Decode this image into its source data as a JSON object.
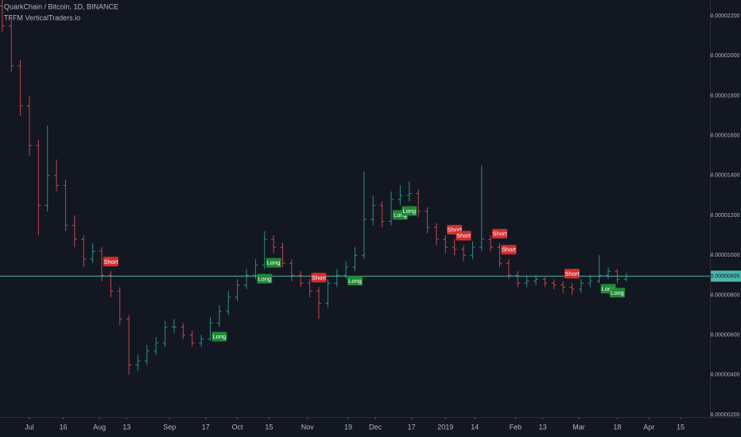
{
  "chart_data": {
    "type": "ohlc",
    "title": "QuarkChain / Bitcoin, 1D, BINANCE",
    "subtitle": "TFFM VerticalTraders.io",
    "x": [
      -12,
      -8,
      -4,
      0,
      4,
      8,
      12,
      16,
      20,
      24,
      28,
      32,
      36,
      40,
      44,
      48,
      52,
      56,
      60,
      64,
      68,
      72,
      76,
      80,
      84,
      88,
      92,
      96,
      100,
      104,
      108,
      112,
      116,
      120,
      124,
      128,
      132,
      136,
      140,
      144,
      148,
      152,
      156,
      160,
      164,
      168,
      172,
      176,
      180,
      184,
      188,
      192,
      196,
      200,
      204,
      208,
      212,
      216,
      220,
      224,
      228,
      232,
      236,
      240,
      244,
      248,
      252,
      256,
      260,
      264
    ],
    "open": [
      2.25e-05,
      2.15e-05,
      1.95e-05,
      1.75e-05,
      1.55e-05,
      1.25e-05,
      1.4e-05,
      1.35e-05,
      1.15e-05,
      1.08e-05,
      9.8e-06,
      1.02e-05,
      9e-06,
      8.2e-06,
      6.8e-06,
      4.5e-06,
      4.7e-06,
      5.2e-06,
      5.6e-06,
      6.4e-06,
      6.4e-06,
      6e-06,
      5.6e-06,
      5.8e-06,
      6.6e-06,
      7.2e-06,
      7.9e-06,
      8.5e-06,
      9e-06,
      9.5e-06,
      1.08e-05,
      1.04e-05,
      9.6e-06,
      9e-06,
      8.6e-06,
      8.2e-06,
      7.6e-06,
      8.6e-06,
      9e-06,
      9.4e-06,
      1e-05,
      1.18e-05,
      1.25e-05,
      1.17e-05,
      1.28e-05,
      1.3e-05,
      1.31e-05,
      1.22e-05,
      1.14e-05,
      1.08e-05,
      1.04e-05,
      1.03e-05,
      1e-05,
      1.04e-05,
      1.08e-05,
      1.04e-05,
      9.6e-06,
      9e-06,
      8.6e-06,
      8.7e-06,
      8.8e-06,
      8.6e-06,
      8.5e-06,
      8.4e-06,
      8.3e-06,
      8.6e-06,
      8.7e-06,
      9e-06,
      9.2e-06,
      8.8e-06
    ],
    "high": [
      2.28e-05,
      2.2e-05,
      1.98e-05,
      1.8e-05,
      1.58e-05,
      1.65e-05,
      1.48e-05,
      1.38e-05,
      1.2e-05,
      1.1e-05,
      1.06e-05,
      1.04e-05,
      9.2e-06,
      8.4e-06,
      7e-06,
      5e-06,
      5.5e-06,
      5.9e-06,
      6.7e-06,
      6.8e-06,
      6.6e-06,
      6.2e-06,
      6e-06,
      6.9e-06,
      7.5e-06,
      8.2e-06,
      8.8e-06,
      9.3e-06,
      9.8e-06,
      1.12e-05,
      1.1e-05,
      1.06e-05,
      9.8e-06,
      9.2e-06,
      8.8e-06,
      8.4e-06,
      8.8e-06,
      9.3e-06,
      9.7e-06,
      1.04e-05,
      1.42e-05,
      1.3e-05,
      1.27e-05,
      1.32e-05,
      1.35e-05,
      1.37e-05,
      1.33e-05,
      1.24e-05,
      1.16e-05,
      1.1e-05,
      1.08e-05,
      1.05e-05,
      1.07e-05,
      1.45e-05,
      1.1e-05,
      1.06e-05,
      9.8e-06,
      9.2e-06,
      9e-06,
      9e-06,
      8.9e-06,
      8.8e-06,
      8.7e-06,
      8.6e-06,
      8.8e-06,
      9e-06,
      1e-05,
      9.4e-06,
      9.3e-06,
      9.1e-06
    ],
    "low": [
      2.12e-05,
      1.92e-05,
      1.7e-05,
      1.5e-05,
      1.1e-05,
      1.22e-05,
      1.32e-05,
      1.12e-05,
      1.04e-05,
      9.4e-06,
      9.6e-06,
      8.7e-06,
      7.9e-06,
      6.5e-06,
      4e-06,
      4.2e-06,
      4.5e-06,
      5e-06,
      5.4e-06,
      6.1e-06,
      5.8e-06,
      5.4e-06,
      5.4e-06,
      5.7e-06,
      6.4e-06,
      7e-06,
      7.7e-06,
      8.3e-06,
      8.8e-06,
      9.3e-06,
      1.01e-05,
      9.4e-06,
      8.7e-06,
      8.4e-06,
      7.9e-06,
      6.8e-06,
      7.4e-06,
      8.4e-06,
      8.8e-06,
      9.2e-06,
      9.8e-06,
      1.15e-05,
      1.14e-05,
      1.15e-05,
      1.25e-05,
      1.27e-05,
      1.19e-05,
      1.11e-05,
      1.05e-05,
      1.01e-05,
      1e-05,
      9.7e-06,
      9.8e-06,
      1.02e-05,
      1.02e-05,
      9.4e-06,
      8.8e-06,
      8.4e-06,
      8.4e-06,
      8.5e-06,
      8.4e-06,
      8.3e-06,
      8.1e-06,
      8e-06,
      8.1e-06,
      8.4e-06,
      8.6e-06,
      8.8e-06,
      8.6e-06,
      8.7e-06
    ],
    "close": [
      2.15e-05,
      1.95e-05,
      1.75e-05,
      1.55e-05,
      1.25e-05,
      1.4e-05,
      1.35e-05,
      1.15e-05,
      1.08e-05,
      9.8e-06,
      1.02e-05,
      9e-06,
      8.2e-06,
      6.8e-06,
      4.5e-06,
      4.7e-06,
      5.2e-06,
      5.6e-06,
      6.4e-06,
      6.4e-06,
      6e-06,
      5.6e-06,
      5.8e-06,
      6.6e-06,
      7.2e-06,
      7.9e-06,
      8.5e-06,
      9e-06,
      9.5e-06,
      1.08e-05,
      1.04e-05,
      9.6e-06,
      9e-06,
      8.6e-06,
      8.2e-06,
      7.6e-06,
      8.6e-06,
      9e-06,
      9.4e-06,
      1e-05,
      1.18e-05,
      1.25e-05,
      1.17e-05,
      1.28e-05,
      1.3e-05,
      1.31e-05,
      1.22e-05,
      1.14e-05,
      1.08e-05,
      1.04e-05,
      1.03e-05,
      1e-05,
      1.04e-05,
      1.08e-05,
      1.04e-05,
      9.6e-06,
      9e-06,
      8.6e-06,
      8.7e-06,
      8.8e-06,
      8.6e-06,
      8.5e-06,
      8.4e-06,
      8.3e-06,
      8.6e-06,
      8.7e-06,
      9e-06,
      9.2e-06,
      8.8e-06,
      8.95e-06
    ],
    "up_color": "#2a8f86",
    "down_color": "#c2464c",
    "xlim": [
      -13,
      301
    ],
    "xticks": [
      {
        "value": 0,
        "label": "Jul"
      },
      {
        "value": 15,
        "label": "16"
      },
      {
        "value": 31,
        "label": "Aug"
      },
      {
        "value": 43,
        "label": "13"
      },
      {
        "value": 62,
        "label": "Sep"
      },
      {
        "value": 78,
        "label": "17"
      },
      {
        "value": 92,
        "label": "Oct"
      },
      {
        "value": 106,
        "label": "15"
      },
      {
        "value": 123,
        "label": "Nov"
      },
      {
        "value": 141,
        "label": "19"
      },
      {
        "value": 153,
        "label": "Dec"
      },
      {
        "value": 169,
        "label": "17"
      },
      {
        "value": 184,
        "label": "2019"
      },
      {
        "value": 197,
        "label": "14"
      },
      {
        "value": 215,
        "label": "Feb"
      },
      {
        "value": 227,
        "label": "13"
      },
      {
        "value": 243,
        "label": "Mar"
      },
      {
        "value": 260,
        "label": "18"
      },
      {
        "value": 274,
        "label": "Apr"
      },
      {
        "value": 288,
        "label": "15"
      }
    ],
    "ylim": [
      1.88e-06,
      2.28e-05
    ],
    "yticks": [
      {
        "value": 2.2e-05,
        "label": "0.00002200"
      },
      {
        "value": 2e-05,
        "label": "0.00002000"
      },
      {
        "value": 1.8e-05,
        "label": "0.00001800"
      },
      {
        "value": 1.6e-05,
        "label": "0.00001600"
      },
      {
        "value": 1.4e-05,
        "label": "0.00001400"
      },
      {
        "value": 1.2e-05,
        "label": "0.00001200"
      },
      {
        "value": 1e-05,
        "label": "0.00001000"
      },
      {
        "value": 8e-06,
        "label": "0.00000800"
      },
      {
        "value": 6e-06,
        "label": "0.00000600"
      },
      {
        "value": 4e-06,
        "label": "0.00000400"
      },
      {
        "value": 2e-06,
        "label": "0.00000200"
      }
    ],
    "grid": false,
    "last_price": {
      "value": 8.95e-06,
      "label": "0.00000895"
    },
    "last_price_color": "#4db6ac",
    "signals": [
      {
        "text": "Short",
        "x": 36
      },
      {
        "text": "Long",
        "x": 84
      },
      {
        "text": "Long",
        "x": 104
      },
      {
        "text": "Long",
        "x": 108
      },
      {
        "text": "Short",
        "x": 128
      },
      {
        "text": "Long",
        "x": 144
      },
      {
        "text": "Long",
        "x": 164
      },
      {
        "text": "Long",
        "x": 168
      },
      {
        "text": "Short",
        "x": 188
      },
      {
        "text": "Short",
        "x": 192
      },
      {
        "text": "Short",
        "x": 208
      },
      {
        "text": "Short",
        "x": 212
      },
      {
        "text": "Short",
        "x": 240
      },
      {
        "text": "Long",
        "x": 256
      },
      {
        "text": "Long",
        "x": 260
      }
    ],
    "signal_colors": {
      "Short": "#d32f2f",
      "Long": "#1e8a34"
    }
  }
}
